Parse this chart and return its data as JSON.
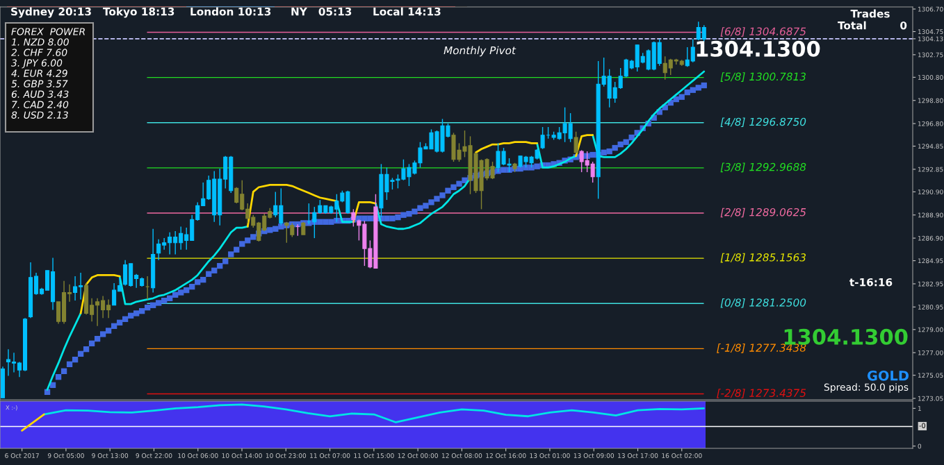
{
  "chart_data": [
    {
      "type": "candlestick",
      "tick_labels": "y",
      "categories": [
        null,
        null,
        null,
        null,
        null,
        null,
        null,
        null,
        null,
        null,
        null,
        null,
        null,
        null,
        null,
        null,
        null,
        null,
        null,
        null,
        null,
        null,
        null,
        null,
        null,
        null,
        null,
        null,
        null,
        null,
        null,
        null,
        null,
        null,
        null,
        null,
        null,
        null,
        null,
        null,
        null,
        null,
        null,
        null,
        null,
        null,
        null,
        null,
        null,
        null,
        null,
        null,
        null,
        null,
        null,
        null,
        null,
        null,
        null,
        null,
        null,
        null,
        null,
        null,
        null,
        null,
        null,
        null,
        null,
        null,
        null,
        null,
        null,
        null,
        null,
        null,
        null,
        null,
        null,
        null,
        null,
        null,
        null,
        null,
        null,
        null,
        null,
        null,
        null,
        null,
        null,
        null,
        null,
        null,
        null,
        null,
        null,
        null,
        null,
        null,
        null,
        null,
        null,
        null,
        null,
        null,
        null,
        null,
        null,
        null,
        null,
        null,
        null,
        null,
        null,
        null,
        null,
        null,
        null,
        null,
        null,
        null,
        null,
        null,
        null,
        null,
        null,
        null,
        null,
        null,
        null,
        null,
        null,
        null,
        null,
        null,
        null,
        null,
        null,
        null,
        null,
        null,
        null,
        null,
        null,
        null,
        null,
        null,
        null,
        null,
        null,
        null,
        null,
        null,
        null,
        null,
        null,
        null,
        null,
        null,
        null,
        null,
        null,
        null
      ],
      "ohlc": [
        [
          1273.1,
          1275.8,
          1273.1,
          1275.6
        ],
        [
          1276.2,
          1277.3,
          1275.0,
          1276.4
        ],
        [
          1276.1,
          1277.0,
          1275.3,
          1276.2
        ],
        [
          1275.5,
          1276.2,
          1274.9,
          1276.1
        ],
        [
          1275.5,
          1280.0,
          1275.4,
          1279.9
        ],
        [
          1280.1,
          1284.8,
          1280.0,
          1283.5
        ],
        [
          1282.1,
          1283.9,
          1282.0,
          1283.6
        ],
        [
          1282.1,
          1282.6,
          1282.0,
          1282.5
        ],
        [
          1282.4,
          1284.1,
          1282.4,
          1284.1
        ],
        [
          1281.4,
          1285.2,
          1280.7,
          1284.0
        ],
        [
          1281.4,
          1281.4,
          1279.5,
          1279.7
        ],
        [
          1282.2,
          1283.2,
          1279.5,
          1279.7
        ],
        [
          1282.2,
          1282.9,
          1281.4,
          1282.1
        ],
        [
          1282.2,
          1283.6,
          1281.5,
          1282.7
        ],
        [
          1282.7,
          1283.9,
          1281.6,
          1282.8
        ],
        [
          1282.8,
          1283.0,
          1280.3,
          1280.4
        ],
        [
          1281.1,
          1281.7,
          1279.7,
          1280.3
        ],
        [
          1281.4,
          1281.7,
          1279.3,
          1281.1
        ],
        [
          1281.5,
          1281.9,
          1280.0,
          1280.7
        ],
        [
          1281.1,
          1281.6,
          1280.0,
          1280.7
        ],
        [
          1281.1,
          1283.0,
          1281.1,
          1282.4
        ],
        [
          1282.3,
          1283.5,
          1282.3,
          1282.8
        ],
        [
          1282.9,
          1285.0,
          1282.8,
          1284.6
        ],
        [
          1282.8,
          1284.7,
          1282.7,
          1284.7
        ],
        [
          1283.4,
          1283.8,
          1282.6,
          1283.7
        ],
        [
          1282.8,
          1283.5,
          1282.7,
          1283.4
        ],
        [
          1282.7,
          1283.6,
          1281.6,
          1282.7
        ],
        [
          1282.6,
          1287.7,
          1282.2,
          1285.5
        ],
        [
          1285.6,
          1286.8,
          1285.0,
          1286.4
        ],
        [
          1286.3,
          1286.9,
          1285.9,
          1286.5
        ],
        [
          1286.5,
          1287.4,
          1285.5,
          1287.0
        ],
        [
          1286.5,
          1287.5,
          1285.5,
          1287.0
        ],
        [
          1286.5,
          1287.9,
          1285.9,
          1287.3
        ],
        [
          1286.7,
          1287.8,
          1285.9,
          1287.2
        ],
        [
          1286.7,
          1288.9,
          1286.7,
          1288.5
        ],
        [
          1288.5,
          1290.0,
          1288.4,
          1289.7
        ],
        [
          1289.7,
          1291.7,
          1289.7,
          1290.3
        ],
        [
          1290.3,
          1292.3,
          1290.2,
          1291.9
        ],
        [
          1288.9,
          1292.7,
          1288.3,
          1292.0
        ],
        [
          1288.9,
          1292.9,
          1288.0,
          1292.0
        ],
        [
          1292.0,
          1294.0,
          1291.2,
          1293.9
        ],
        [
          1291.0,
          1294.0,
          1290.8,
          1293.9
        ],
        [
          1291.2,
          1291.3,
          1289.9,
          1290.0
        ],
        [
          1290.7,
          1291.9,
          1289.3,
          1289.4
        ],
        [
          1289.4,
          1289.9,
          1288.2,
          1288.6
        ],
        [
          1288.7,
          1288.9,
          1287.8,
          1288.0
        ],
        [
          1288.2,
          1288.3,
          1286.6,
          1286.7
        ],
        [
          1288.8,
          1289.0,
          1287.5,
          1287.6
        ],
        [
          1289.2,
          1289.5,
          1288.6,
          1288.7
        ],
        [
          1288.9,
          1290.9,
          1288.7,
          1289.7
        ],
        [
          1288.2,
          1291.2,
          1288.0,
          1289.7
        ],
        [
          1288.2,
          1288.3,
          1286.5,
          1288.0
        ],
        [
          1288.0,
          1288.2,
          1287.0,
          1287.2
        ],
        [
          1287.9,
          1288.1,
          1287.1,
          1287.9
        ],
        [
          1288.2,
          1288.3,
          1287.2,
          1287.2
        ],
        [
          1288.3,
          1289.9,
          1288.1,
          1288.3
        ],
        [
          1288.3,
          1289.6,
          1286.9,
          1289.1
        ],
        [
          1289.1,
          1290.2,
          1289.0,
          1289.7
        ],
        [
          1289.1,
          1289.7,
          1289.0,
          1289.7
        ],
        [
          1289.1,
          1289.7,
          1289.0,
          1289.6
        ],
        [
          1289.4,
          1290.7,
          1288.3,
          1290.1
        ],
        [
          1290.1,
          1291.0,
          1290.0,
          1290.8
        ],
        [
          1289.1,
          1291.0,
          1289.0,
          1290.9
        ],
        [
          1289.1,
          1289.4,
          1287.9,
          1288.5
        ],
        [
          1288.4,
          1288.5,
          1286.7,
          1288.0
        ],
        [
          1288.1,
          1288.4,
          1284.5,
          1286.0
        ],
        [
          1286.0,
          1286.7,
          1284.3,
          1284.4
        ],
        [
          1284.3,
          1290.7,
          1284.3,
          1289.6
        ],
        [
          1289.5,
          1293.3,
          1288.7,
          1292.4
        ],
        [
          1290.9,
          1293.0,
          1290.2,
          1292.4
        ],
        [
          1291.8,
          1292.1,
          1291.1,
          1291.9
        ],
        [
          1291.9,
          1292.4,
          1291.2,
          1292.0
        ],
        [
          1292.0,
          1293.7,
          1291.9,
          1292.9
        ],
        [
          1292.2,
          1293.3,
          1291.4,
          1293.0
        ],
        [
          1292.5,
          1293.6,
          1292.4,
          1293.4
        ],
        [
          1293.4,
          1295.2,
          1293.0,
          1294.7
        ],
        [
          1294.6,
          1295.1,
          1294.6,
          1294.8
        ],
        [
          1294.6,
          1296.3,
          1294.6,
          1296.0
        ],
        [
          1294.4,
          1296.2,
          1294.3,
          1296.1
        ],
        [
          1294.4,
          1297.2,
          1294.3,
          1296.6
        ],
        [
          1295.7,
          1296.8,
          1295.6,
          1296.6
        ],
        [
          1295.8,
          1296.0,
          1293.5,
          1293.7
        ],
        [
          1294.5,
          1295.1,
          1293.5,
          1293.7
        ],
        [
          1294.8,
          1296.2,
          1293.9,
          1294.4
        ],
        [
          1294.9,
          1295.7,
          1290.7,
          1291.9
        ],
        [
          1294.2,
          1294.3,
          1290.8,
          1291.0
        ],
        [
          1293.6,
          1293.7,
          1289.4,
          1291.0
        ],
        [
          1293.7,
          1293.8,
          1291.9,
          1292.1
        ],
        [
          1293.1,
          1293.5,
          1292.0,
          1292.1
        ],
        [
          1293.0,
          1295.1,
          1292.6,
          1294.4
        ],
        [
          1293.3,
          1294.7,
          1293.2,
          1294.4
        ],
        [
          1293.2,
          1293.8,
          1292.6,
          1293.3
        ],
        [
          1293.3,
          1293.4,
          1292.6,
          1292.9
        ],
        [
          1293.1,
          1294.0,
          1293.0,
          1294.0
        ],
        [
          1293.5,
          1294.0,
          1293.0,
          1293.9
        ],
        [
          1293.4,
          1294.0,
          1293.0,
          1293.9
        ],
        [
          1293.8,
          1294.6,
          1293.7,
          1294.5
        ],
        [
          1294.7,
          1296.5,
          1294.6,
          1295.8
        ],
        [
          1295.8,
          1296.5,
          1295.5,
          1295.8
        ],
        [
          1295.6,
          1296.1,
          1295.4,
          1295.8
        ],
        [
          1295.5,
          1296.5,
          1295.4,
          1296.0
        ],
        [
          1296.0,
          1298.2,
          1295.2,
          1296.8
        ],
        [
          1295.5,
          1297.7,
          1295.2,
          1296.8
        ],
        [
          1295.6,
          1296.1,
          1294.2,
          1294.3
        ],
        [
          1294.4,
          1294.5,
          1292.6,
          1293.5
        ],
        [
          1293.6,
          1294.4,
          1292.6,
          1293.2
        ],
        [
          1293.3,
          1293.5,
          1291.7,
          1292.2
        ],
        [
          1292.2,
          1302.2,
          1290.3,
          1300.2
        ],
        [
          1300.2,
          1302.5,
          1300.0,
          1300.9
        ],
        [
          1299.0,
          1301.5,
          1298.2,
          1300.9
        ],
        [
          1299.0,
          1300.4,
          1298.6,
          1299.9
        ],
        [
          1299.9,
          1301.6,
          1299.8,
          1300.9
        ],
        [
          1300.9,
          1302.4,
          1300.8,
          1302.3
        ],
        [
          1301.6,
          1302.3,
          1301.5,
          1302.2
        ],
        [
          1301.7,
          1303.6,
          1301.3,
          1303.6
        ],
        [
          1302.1,
          1302.9,
          1302.0,
          1302.6
        ],
        [
          1301.5,
          1303.2,
          1301.4,
          1303.1
        ],
        [
          1301.5,
          1303.9,
          1301.4,
          1303.8
        ],
        [
          1302.0,
          1304.1,
          1301.8,
          1303.8
        ],
        [
          1302.0,
          1302.6,
          1300.6,
          1301.2
        ],
        [
          1302.3,
          1302.4,
          1301.0,
          1301.6
        ],
        [
          1302.3,
          1302.4,
          1301.9,
          1302.2
        ],
        [
          1302.2,
          1302.3,
          1301.8,
          1301.9
        ],
        [
          1301.8,
          1303.4,
          1301.7,
          1302.3
        ],
        [
          1302.2,
          1304.1,
          1302.1,
          1303.4
        ],
        [
          1304.1,
          1305.6,
          1304.0,
          1305.1
        ],
        [
          1304.1,
          1305.3,
          1303.9,
          1305.1
        ],
        null,
        null,
        null,
        null,
        null,
        null,
        null,
        null,
        null,
        null,
        null,
        null,
        null,
        null,
        null,
        null,
        null,
        null,
        null,
        null,
        null,
        null,
        null,
        null,
        null,
        null,
        null,
        null,
        null,
        null,
        null,
        null,
        null,
        null,
        null,
        null,
        null
      ],
      "colors": [
        "#00bfff",
        "#00bfff",
        "#00bfff",
        "#00bfff",
        "#00bfff",
        "#00bfff",
        "#00bfff",
        "#00bfff",
        "#00bfff",
        "#00bfff",
        "#838331",
        "#838331",
        "#838331",
        "#00bfff",
        "#00bfff",
        "#838331",
        "#838331",
        "#838331",
        "#838331",
        "#838331",
        "#00bfff",
        "#00bfff",
        "#00bfff",
        "#00bfff",
        "#00bfff",
        "#00bfff",
        "#838331",
        "#00bfff",
        "#00bfff",
        "#00bfff",
        "#00bfff",
        "#00bfff",
        "#00bfff",
        "#00bfff",
        "#00bfff",
        "#00bfff",
        "#00bfff",
        "#00bfff",
        "#00bfff",
        "#00bfff",
        "#00bfff",
        "#00bfff",
        "#838331",
        "#838331",
        "#838331",
        "#838331",
        "#838331",
        "#838331",
        "#838331",
        "#00bfff",
        "#00bfff",
        "#838331",
        "#838331",
        "#ee82ee",
        "#838331",
        "#00bfff",
        "#00bfff",
        "#00bfff",
        "#00bfff",
        "#00bfff",
        "#00bfff",
        "#00bfff",
        "#00bfff",
        "#ee82ee",
        "#ee82ee",
        "#ee82ee",
        "#ee82ee",
        "#ee82ee",
        "#00bfff",
        "#00bfff",
        "#00bfff",
        "#00bfff",
        "#00bfff",
        "#00bfff",
        "#00bfff",
        "#00bfff",
        "#00bfff",
        "#00bfff",
        "#00bfff",
        "#00bfff",
        "#00bfff",
        "#838331",
        "#838331",
        "#838331",
        "#838331",
        "#838331",
        "#838331",
        "#838331",
        "#838331",
        "#00bfff",
        "#00bfff",
        "#00bfff",
        "#838331",
        "#00bfff",
        "#00bfff",
        "#00bfff",
        "#00bfff",
        "#00bfff",
        "#00bfff",
        "#00bfff",
        "#00bfff",
        "#00bfff",
        "#00bfff",
        "#838331",
        "#ee82ee",
        "#ee82ee",
        "#ee82ee",
        "#00bfff",
        "#00bfff",
        "#00bfff",
        "#00bfff",
        "#00bfff",
        "#00bfff",
        "#00bfff",
        "#00bfff",
        "#00bfff",
        "#00bfff",
        "#00bfff",
        "#00bfff",
        "#838331",
        "#838331",
        "#838331",
        "#838331",
        "#00bfff",
        "#00bfff",
        "#00bfff",
        "#00bfff",
        null,
        null,
        null,
        null,
        null,
        null,
        null,
        null,
        null,
        null,
        null,
        null,
        null,
        null,
        null,
        null,
        null,
        null,
        null,
        null,
        null,
        null,
        null,
        null,
        null,
        null,
        null,
        null,
        null,
        null,
        null,
        null,
        null,
        null,
        null,
        null,
        null
      ],
      "series": [
        {
          "type": "line",
          "color": "#00e5e5",
          "values": [
            null,
            null,
            null,
            null,
            null,
            null,
            null,
            null,
            1273.8,
            1275.0,
            1276.1,
            1277.3,
            1278.4,
            1279.4,
            1280.4,
            null,
            null,
            null,
            null,
            null,
            null,
            1283.6,
            1281.2,
            1281.2,
            1281.4,
            1281.5,
            1281.6,
            1281.7,
            1281.9,
            1282.0,
            1282.2,
            1282.4,
            1282.7,
            1283.0,
            1283.3,
            1283.7,
            1284.3,
            1284.9,
            1285.4,
            1286.0,
            1286.7,
            1287.4,
            1287.8,
            1287.8,
            1287.9,
            null,
            null,
            null,
            null,
            null,
            null,
            null,
            null,
            null,
            null,
            null,
            null,
            null,
            null,
            null,
            1290.1,
            1288.3,
            1288.3,
            1288.3,
            null,
            null,
            null,
            1289.9,
            1288.1,
            1287.9,
            1287.8,
            1287.7,
            1287.7,
            1287.8,
            1288.0,
            1288.2,
            1288.6,
            1289.0,
            1289.3,
            1289.6,
            1290.1,
            1290.7,
            1291.0,
            1291.4,
            1292.1,
            null,
            null,
            null,
            null,
            null,
            null,
            null,
            null,
            null,
            null,
            null,
            1295.1,
            1293.0,
            1293.0,
            1293.1,
            1293.3,
            1293.5,
            1293.8,
            1294.0,
            null,
            null,
            1295.8,
            1294.0,
            1293.9,
            1293.9,
            1293.9,
            1294.2,
            1294.6,
            1295.1,
            1295.7,
            1296.3,
            1297.0,
            1297.6,
            1298.1,
            1298.5,
            1298.9,
            1299.3,
            1299.7,
            1300.1,
            1300.5,
            1300.9,
            1301.3,
            null,
            null,
            null,
            null,
            null,
            null,
            null,
            null,
            null,
            null,
            null,
            null,
            null,
            null,
            null,
            null,
            null,
            null,
            null,
            null,
            null,
            null,
            null,
            null,
            null,
            null,
            null,
            null,
            null,
            null,
            null,
            null,
            null,
            null,
            null,
            null,
            null
          ]
        },
        {
          "type": "line",
          "color": "#ffd700",
          "values": [
            null,
            null,
            null,
            null,
            null,
            null,
            null,
            null,
            null,
            null,
            null,
            null,
            null,
            null,
            1280.4,
            1282.9,
            1283.5,
            1283.7,
            1283.7,
            1283.7,
            1283.7,
            1283.6,
            null,
            null,
            null,
            null,
            null,
            null,
            null,
            null,
            null,
            null,
            null,
            null,
            null,
            null,
            null,
            null,
            null,
            null,
            null,
            null,
            null,
            null,
            1287.9,
            1290.9,
            1291.3,
            1291.4,
            1291.5,
            1291.5,
            1291.5,
            1291.5,
            1291.4,
            1291.2,
            1291.0,
            1290.8,
            1290.6,
            1290.4,
            1290.3,
            1290.2,
            1290.1,
            null,
            null,
            1288.3,
            1290.0,
            1290.0,
            1290.0,
            1289.9,
            null,
            null,
            null,
            null,
            null,
            null,
            null,
            null,
            null,
            null,
            null,
            null,
            null,
            null,
            null,
            null,
            null,
            1294.3,
            1294.6,
            1294.8,
            1295.0,
            1295.0,
            1295.1,
            1295.1,
            1295.2,
            1295.2,
            1295.2,
            1295.1,
            1295.1,
            null,
            null,
            null,
            null,
            null,
            null,
            1294.0,
            1295.7,
            1295.8,
            1295.8,
            null,
            null,
            null,
            null,
            null,
            null,
            null,
            null,
            null,
            null,
            null,
            null,
            null,
            null,
            null,
            null,
            null,
            null,
            null,
            null,
            null,
            null,
            null,
            null,
            null,
            null,
            null,
            null,
            null,
            null,
            null,
            null,
            null,
            null,
            null,
            null,
            null,
            null,
            null,
            null,
            null,
            null,
            null,
            null,
            null,
            null,
            null,
            null,
            null,
            null,
            null,
            null,
            null,
            null,
            null,
            null,
            null
          ]
        },
        {
          "type": "scatter",
          "marker": "square",
          "color": "#4169e1",
          "values": [
            null,
            null,
            null,
            null,
            null,
            null,
            null,
            null,
            1273.6,
            1274.2,
            1274.9,
            1275.4,
            1276.0,
            1276.4,
            1276.9,
            1277.3,
            1277.8,
            1278.2,
            1278.6,
            1278.9,
            1279.3,
            1279.6,
            1279.9,
            1280.2,
            1280.4,
            1280.6,
            1280.9,
            1281.1,
            1281.3,
            1281.5,
            1281.7,
            1282.0,
            1282.2,
            1282.4,
            1282.7,
            1283.1,
            1283.3,
            1283.8,
            1284.1,
            1284.5,
            1284.9,
            1285.5,
            1285.9,
            1286.4,
            1286.7,
            1287.0,
            1287.3,
            1287.5,
            1287.6,
            1287.7,
            1287.9,
            1288.0,
            1288.1,
            1288.1,
            1288.2,
            1288.2,
            1288.3,
            1288.3,
            1288.3,
            1288.3,
            1288.4,
            1288.4,
            1288.4,
            1288.5,
            1288.6,
            1288.6,
            1288.6,
            1288.6,
            1288.6,
            1288.6,
            1288.6,
            1288.7,
            1288.9,
            1289.0,
            1289.2,
            1289.5,
            1289.7,
            1290.0,
            1290.3,
            1290.6,
            1291.0,
            1291.3,
            1291.6,
            1291.9,
            1292.1,
            1292.3,
            1292.4,
            1292.5,
            1292.6,
            1292.7,
            1292.8,
            1292.8,
            1292.9,
            1292.9,
            1293.0,
            1293.0,
            1293.1,
            1293.2,
            1293.2,
            1293.3,
            1293.4,
            1293.6,
            1293.7,
            1293.9,
            1294.0,
            1294.0,
            1294.1,
            1294.1,
            1294.3,
            1294.4,
            1294.7,
            1295.0,
            1295.2,
            1295.6,
            1296.0,
            1296.4,
            1296.8,
            1297.3,
            1297.8,
            1298.2,
            1298.6,
            1298.9,
            1299.1,
            1299.5,
            1299.7,
            1299.9,
            1300.1,
            null,
            null,
            null,
            null,
            null,
            null,
            null,
            null,
            null,
            null,
            null,
            null,
            null,
            null,
            null,
            null,
            null,
            null,
            null,
            null,
            null,
            null,
            null,
            null,
            null,
            null,
            null,
            null,
            null,
            null,
            null,
            null,
            null,
            null,
            null,
            null,
            null
          ]
        }
      ],
      "ylim": [
        1272.93,
        1306.88
      ],
      "yticks": [
        {
          "value": 1273.05,
          "label": "1273.05"
        },
        {
          "value": 1275.05,
          "label": "1275.05"
        },
        {
          "value": 1277.0,
          "label": "1277.00"
        },
        {
          "value": 1279.0,
          "label": "1279.00"
        },
        {
          "value": 1280.95,
          "label": "1280.95"
        },
        {
          "value": 1282.95,
          "label": "1282.95"
        },
        {
          "value": 1284.95,
          "label": "1284.95"
        },
        {
          "value": 1286.9,
          "label": "1286.90"
        },
        {
          "value": 1288.9,
          "label": "1288.90"
        },
        {
          "value": 1290.9,
          "label": "1290.90"
        },
        {
          "value": 1292.85,
          "label": "1292.85"
        },
        {
          "value": 1294.85,
          "label": "1294.85"
        },
        {
          "value": 1296.8,
          "label": "1296.80"
        },
        {
          "value": 1298.8,
          "label": "1298.80"
        },
        {
          "value": 1300.8,
          "label": "1300.80"
        },
        {
          "value": 1302.75,
          "label": "1302.75"
        },
        {
          "value": 1304.13,
          "label": "1304.13"
        },
        {
          "value": 1304.75,
          "label": "1304.75"
        },
        {
          "value": 1306.7,
          "label": "1306.70"
        }
      ],
      "ref_lines": [
        {
          "axis": "y",
          "value": 1304.6875,
          "label": "[6/8] 1304.6875",
          "color": "#e8609a"
        },
        {
          "axis": "y",
          "value": 1300.7813,
          "label": "[5/8] 1300.7813",
          "color": "#22dd22"
        },
        {
          "axis": "y",
          "value": 1296.875,
          "label": "[4/8] 1296.8750",
          "color": "#3fe0e0"
        },
        {
          "axis": "y",
          "value": 1292.9688,
          "label": "[3/8] 1292.9688",
          "color": "#22dd22"
        },
        {
          "axis": "y",
          "value": 1289.0625,
          "label": "[2/8] 1289.0625",
          "color": "#f06aa0"
        },
        {
          "axis": "y",
          "value": 1285.1563,
          "label": "[1/8] 1285.1563",
          "color": "#e6e600"
        },
        {
          "axis": "y",
          "value": 1281.25,
          "label": "[0/8] 1281.2500",
          "color": "#3fe0e0"
        },
        {
          "axis": "y",
          "value": 1277.3438,
          "label": "[-1/8] 1277.3438",
          "color": "#ff8c00"
        },
        {
          "axis": "y",
          "value": 1273.4375,
          "label": "[-2/8] 1273.4375",
          "color": "#e01010"
        },
        {
          "axis": "y",
          "value": 1304.13,
          "label": "Monthly Pivot",
          "color": "#c8c8ff",
          "line_style": "dashed"
        }
      ],
      "annotations": [
        "Sydney 20:13",
        "Tokyo 18:13",
        "London 10:13",
        "NY   05:13",
        "Local 14:13",
        "FOREX  POWER\n1. NZD 8.00\n2. CHF 7.60\n3. JPY 6.00\n4. EUR 4.29\n5. GBP 3.57\n6. AUD 3.43\n7. CAD 2.40\n8. USD 2.13",
        "1304.1300",
        "Trades",
        "Total",
        "0",
        "t-16:16",
        "1304.1300",
        "GOLD",
        "Spread: 50.0 pips"
      ]
    },
    {
      "type": "line",
      "categories": [
        "6 Oct 2017",
        null,
        "9 Oct 05:00",
        null,
        "9 Oct 13:00",
        null,
        "9 Oct 22:00",
        null,
        "10 Oct 06:00",
        null,
        "10 Oct 14:00",
        null,
        "10 Oct 23:00",
        null,
        "11 Oct 07:00",
        null,
        "11 Oct 15:00",
        null,
        "12 Oct 00:00",
        null,
        "12 Oct 08:00",
        null,
        "12 Oct 16:00",
        null,
        "13 Oct 01:00",
        null,
        "13 Oct 09:00",
        null,
        "13 Oct 17:00",
        null,
        "16 Oct 02:00",
        null,
        null,
        null,
        null,
        null,
        null,
        null,
        null,
        null,
        null
      ],
      "series": [
        {
          "color": "#00e5e5",
          "values": [
            null,
            0.84,
            0.95,
            0.94,
            0.9,
            0.89,
            0.94,
            1.0,
            1.03,
            1.08,
            1.1,
            1.05,
            0.97,
            0.87,
            0.79,
            0.86,
            0.84,
            0.63,
            0.76,
            0.89,
            0.97,
            0.94,
            0.83,
            0.79,
            0.89,
            0.95,
            0.89,
            0.81,
            0.95,
            0.98,
            0.97,
            1.0,
            null,
            null,
            null,
            null,
            null,
            null,
            null,
            null,
            null
          ]
        },
        {
          "color": "#ffd700",
          "values": [
            0.41,
            0.84,
            null,
            null,
            null,
            null,
            null,
            null,
            null,
            null,
            null,
            null,
            null,
            null,
            null,
            null,
            null,
            null,
            null,
            null,
            null,
            null,
            null,
            null,
            null,
            null,
            null,
            null,
            null,
            null,
            null,
            null,
            null,
            null,
            null,
            null,
            null,
            null,
            null,
            null,
            null
          ]
        }
      ],
      "ylim": [
        -0.06,
        1.19
      ],
      "yticks": [
        1,
        0
      ],
      "ref_lines": [
        {
          "axis": "y",
          "value": 0.52,
          "color": "#ffffff"
        }
      ],
      "annotations": [
        "X :-)",
        "-0"
      ]
    }
  ]
}
